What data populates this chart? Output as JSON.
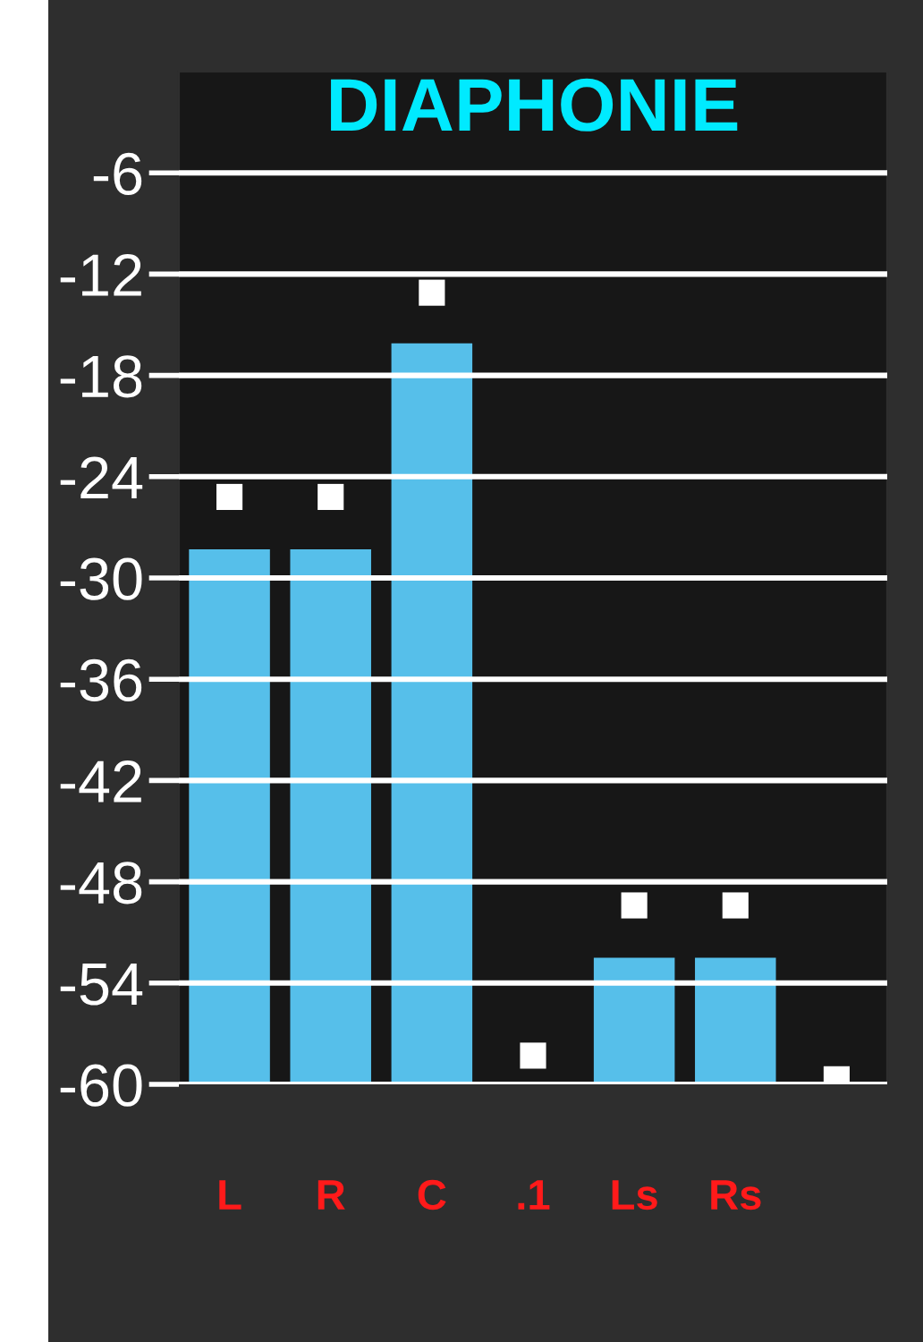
{
  "chart_data": {
    "type": "bar",
    "title": "DIAPHONIE",
    "categories": [
      "L",
      "R",
      "C",
      ".1",
      "Ls",
      "Rs",
      null
    ],
    "series": [
      {
        "color": "#56bfea",
        "base": [
          -60,
          -60,
          -60,
          null,
          -60,
          -60,
          null
        ],
        "values": [
          31.7,
          31.7,
          43.9,
          null,
          7.5,
          7.5,
          null
        ]
      },
      {
        "type": "scatter",
        "marker": "square",
        "color": "#ffffff",
        "values": [
          -25.2,
          -25.2,
          -13.1,
          -58.3,
          -49.4,
          -49.4,
          -59.7
        ]
      }
    ],
    "ylim": [
      -60,
      0
    ],
    "yticks": [
      {
        "value": -6,
        "label": "-6"
      },
      {
        "value": -12,
        "label": "-12"
      },
      {
        "value": -18,
        "label": "-18"
      },
      {
        "value": -24,
        "label": "-24"
      },
      {
        "value": -30,
        "label": "-30"
      },
      {
        "value": -36,
        "label": "-36"
      },
      {
        "value": -42,
        "label": "-42"
      },
      {
        "value": -48,
        "label": "-48"
      },
      {
        "value": -54,
        "label": "-54"
      },
      {
        "value": -60,
        "label": "-60"
      }
    ],
    "grid": "y"
  }
}
